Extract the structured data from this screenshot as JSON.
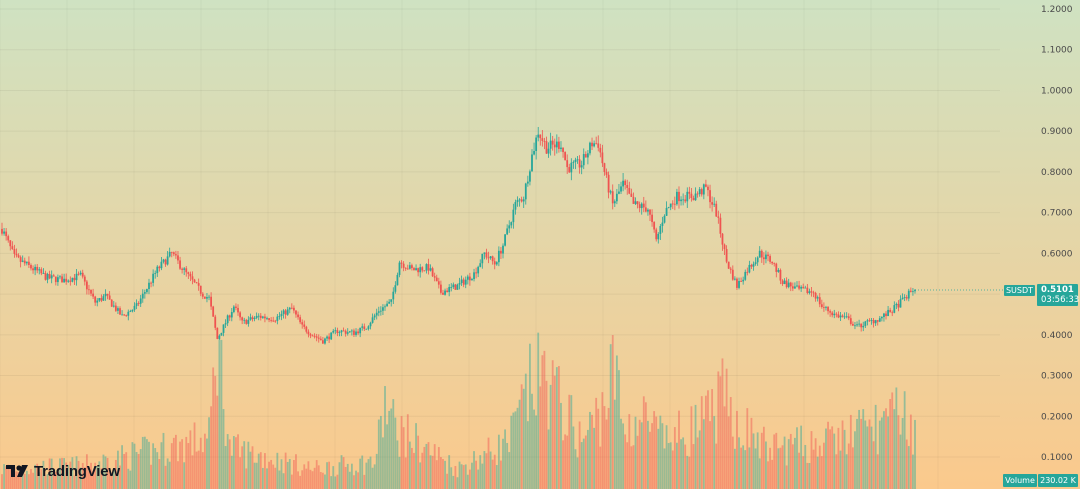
{
  "chart_data": {
    "type": "candlestick",
    "symbol": "SUSDT",
    "brand": "TradingView",
    "last_price": "0.5101",
    "countdown": "03:56:33",
    "volume_label": "Volume",
    "volume_value": "230.02 K",
    "ylim": [
      0.0,
      1.2
    ],
    "y_ticks": [
      "1.2000",
      "1.1000",
      "1.0000",
      "0.9000",
      "0.8000",
      "0.7000",
      "0.6000",
      "0.5000",
      "0.4000",
      "0.3000",
      "0.2000",
      "0.1000"
    ],
    "y_tick_values": [
      1.2,
      1.1,
      1.0,
      0.9,
      0.8,
      0.7,
      0.6,
      0.5,
      0.4,
      0.3,
      0.2,
      0.1
    ],
    "colors": {
      "up": "#26a69a",
      "down": "#ef5350",
      "bg_top": "#cfe2c2",
      "bg_bottom": "#fbc98c"
    },
    "close_anchors": [
      [
        0,
        0.66
      ],
      [
        6,
        0.59
      ],
      [
        14,
        0.565
      ],
      [
        22,
        0.54
      ],
      [
        30,
        0.535
      ],
      [
        38,
        0.545
      ],
      [
        45,
        0.48
      ],
      [
        50,
        0.495
      ],
      [
        58,
        0.445
      ],
      [
        65,
        0.47
      ],
      [
        75,
        0.56
      ],
      [
        82,
        0.6
      ],
      [
        89,
        0.55
      ],
      [
        97,
        0.5
      ],
      [
        100,
        0.49
      ],
      [
        104,
        0.39
      ],
      [
        107,
        0.42
      ],
      [
        112,
        0.47
      ],
      [
        116,
        0.43
      ],
      [
        124,
        0.445
      ],
      [
        132,
        0.44
      ],
      [
        140,
        0.465
      ],
      [
        145,
        0.42
      ],
      [
        150,
        0.4
      ],
      [
        155,
        0.385
      ],
      [
        162,
        0.41
      ],
      [
        170,
        0.405
      ],
      [
        176,
        0.42
      ],
      [
        182,
        0.46
      ],
      [
        188,
        0.48
      ],
      [
        192,
        0.58
      ],
      [
        198,
        0.56
      ],
      [
        206,
        0.565
      ],
      [
        212,
        0.505
      ],
      [
        220,
        0.52
      ],
      [
        228,
        0.55
      ],
      [
        233,
        0.6
      ],
      [
        238,
        0.575
      ],
      [
        242,
        0.62
      ],
      [
        248,
        0.72
      ],
      [
        252,
        0.74
      ],
      [
        256,
        0.84
      ],
      [
        259,
        0.9
      ],
      [
        263,
        0.86
      ],
      [
        270,
        0.87
      ],
      [
        273,
        0.81
      ],
      [
        280,
        0.82
      ],
      [
        285,
        0.87
      ],
      [
        288,
        0.87
      ],
      [
        291,
        0.8
      ],
      [
        295,
        0.72
      ],
      [
        300,
        0.77
      ],
      [
        305,
        0.72
      ],
      [
        312,
        0.71
      ],
      [
        316,
        0.63
      ],
      [
        320,
        0.7
      ],
      [
        326,
        0.74
      ],
      [
        334,
        0.74
      ],
      [
        340,
        0.76
      ],
      [
        345,
        0.7
      ],
      [
        350,
        0.58
      ],
      [
        355,
        0.52
      ],
      [
        360,
        0.56
      ],
      [
        366,
        0.6
      ],
      [
        372,
        0.58
      ],
      [
        377,
        0.53
      ],
      [
        385,
        0.51
      ],
      [
        392,
        0.505
      ],
      [
        396,
        0.47
      ],
      [
        402,
        0.45
      ],
      [
        408,
        0.44
      ],
      [
        413,
        0.42
      ],
      [
        418,
        0.43
      ],
      [
        424,
        0.44
      ],
      [
        430,
        0.46
      ],
      [
        436,
        0.49
      ],
      [
        440,
        0.51
      ],
      [
        441,
        0.5101
      ]
    ],
    "volume_anchors": [
      [
        0,
        0.06
      ],
      [
        40,
        0.07
      ],
      [
        100,
        0.15
      ],
      [
        104,
        0.45
      ],
      [
        110,
        0.12
      ],
      [
        150,
        0.06
      ],
      [
        180,
        0.08
      ],
      [
        185,
        0.25
      ],
      [
        190,
        0.18
      ],
      [
        220,
        0.06
      ],
      [
        245,
        0.14
      ],
      [
        255,
        0.3
      ],
      [
        262,
        0.34
      ],
      [
        270,
        0.25
      ],
      [
        280,
        0.14
      ],
      [
        290,
        0.24
      ],
      [
        296,
        0.36
      ],
      [
        300,
        0.18
      ],
      [
        310,
        0.21
      ],
      [
        320,
        0.14
      ],
      [
        340,
        0.2
      ],
      [
        348,
        0.27
      ],
      [
        355,
        0.2
      ],
      [
        370,
        0.12
      ],
      [
        400,
        0.14
      ],
      [
        412,
        0.17
      ],
      [
        430,
        0.2
      ],
      [
        435,
        0.25
      ],
      [
        441,
        0.15
      ]
    ]
  }
}
